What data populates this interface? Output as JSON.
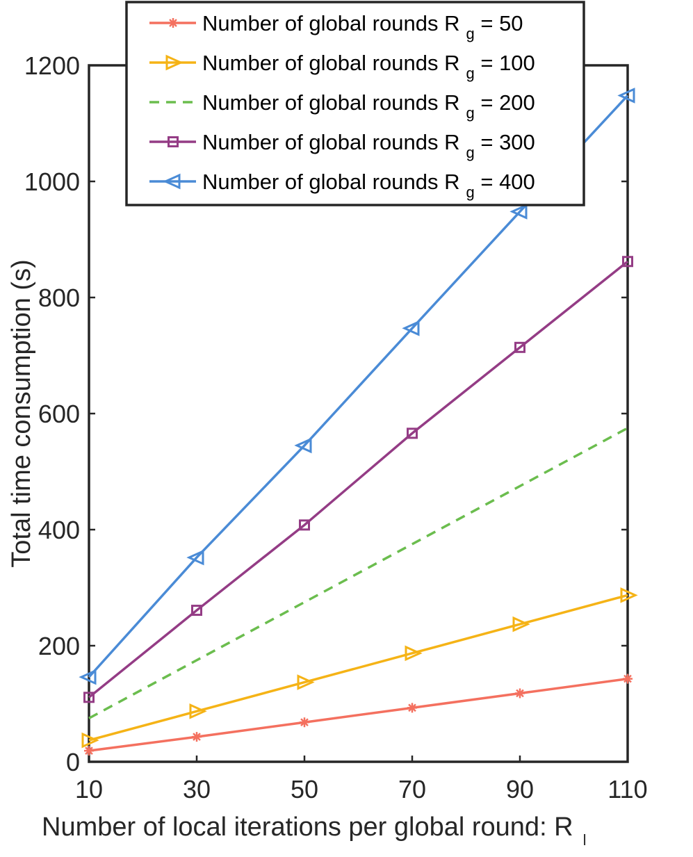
{
  "chart_data": {
    "type": "line",
    "xlabel": "Number of local iterations per global round: R",
    "xlabel_subscript": "l",
    "ylabel": "Total time consumption (s)",
    "x": [
      10,
      30,
      50,
      70,
      90,
      110
    ],
    "xticks": [
      "10",
      "30",
      "50",
      "70",
      "90",
      "110"
    ],
    "yticks": [
      "0",
      "200",
      "400",
      "600",
      "800",
      "1000",
      "1200"
    ],
    "xlim": [
      10,
      110
    ],
    "ylim": [
      0,
      1200
    ],
    "grid": false,
    "legend_position": "top",
    "series": [
      {
        "name": "Number of global rounds R",
        "subscript": "g",
        "suffix": " = 50",
        "color": "#f4705f",
        "marker": "asterisk",
        "dash": "solid",
        "values": [
          19,
          43,
          68,
          93,
          118,
          143
        ]
      },
      {
        "name": "Number of global rounds R",
        "subscript": "g",
        "suffix": " = 100",
        "color": "#f5b316",
        "marker": "triangle-right",
        "dash": "solid",
        "values": [
          37,
          87,
          137,
          187,
          237,
          287
        ]
      },
      {
        "name": "Number of global rounds R",
        "subscript": "g",
        "suffix": " = 200",
        "color": "#6bbd4e",
        "marker": "none",
        "dash": "dashed",
        "values": [
          75,
          175,
          275,
          375,
          475,
          575
        ]
      },
      {
        "name": "Number of global rounds R",
        "subscript": "g",
        "suffix": " = 300",
        "color": "#943c85",
        "marker": "square",
        "dash": "solid",
        "values": [
          111,
          261,
          408,
          566,
          714,
          862
        ]
      },
      {
        "name": "Number of global rounds R",
        "subscript": "g",
        "suffix": " = 400",
        "color": "#4a8bd6",
        "marker": "triangle-left",
        "dash": "solid",
        "values": [
          146,
          352,
          545,
          747,
          948,
          1148
        ]
      }
    ]
  }
}
